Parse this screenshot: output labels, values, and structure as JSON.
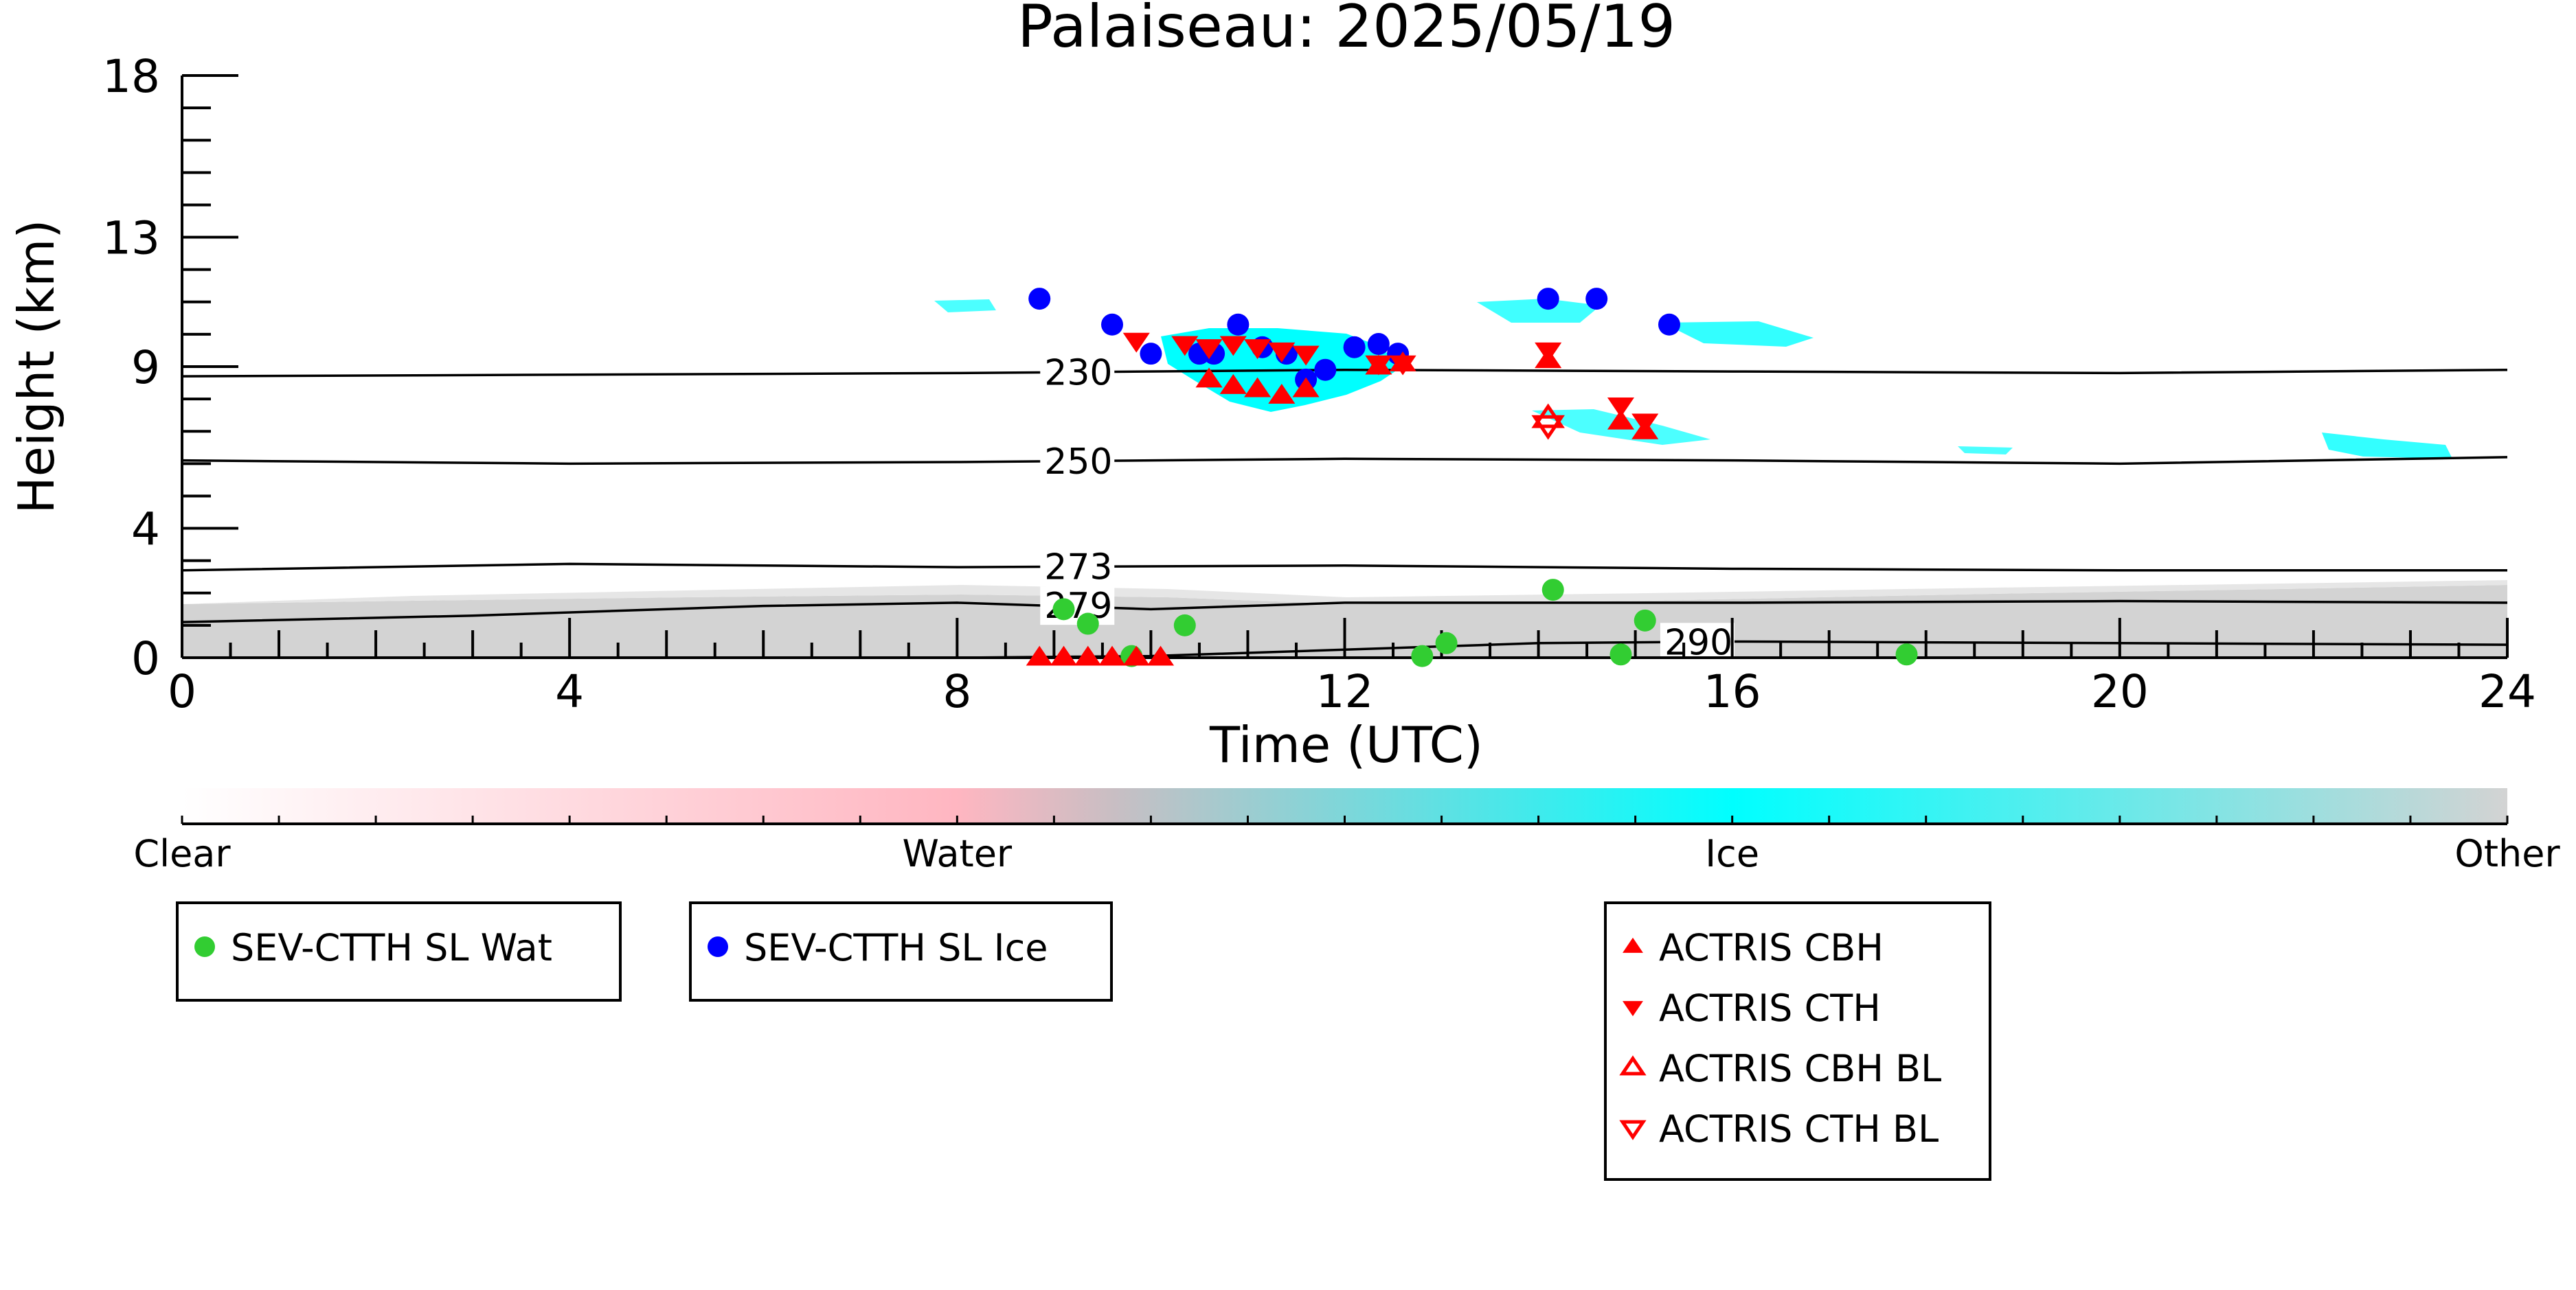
{
  "chart_data": {
    "type": "scatter",
    "title": "Palaiseau: 2025/05/19",
    "xlabel": "Time (UTC)",
    "ylabel": "Height (km)",
    "xlim": [
      0,
      24
    ],
    "ylim": [
      0,
      18
    ],
    "xticks": [
      "0",
      "4",
      "8",
      "12",
      "16",
      "20",
      "24"
    ],
    "yticks": [
      "0",
      "4",
      "9",
      "13",
      "18"
    ],
    "grid": false,
    "colorbar": {
      "labels": [
        "Clear",
        "Water",
        "Ice",
        "Other"
      ],
      "colors": [
        "#ffffff",
        "#ffb6c1",
        "#00ffff",
        "#d3d3d3"
      ]
    },
    "isotherms": [
      {
        "label": "230",
        "x": [
          0,
          4,
          8,
          12,
          16,
          20,
          24
        ],
        "y": [
          8.7,
          8.75,
          8.8,
          8.9,
          8.85,
          8.8,
          8.9
        ]
      },
      {
        "label": "250",
        "x": [
          0,
          4,
          8,
          12,
          16,
          20,
          24
        ],
        "y": [
          6.1,
          6.0,
          6.05,
          6.15,
          6.1,
          6.0,
          6.2
        ]
      },
      {
        "label": "273",
        "x": [
          0,
          4,
          8,
          12,
          16,
          20,
          24
        ],
        "y": [
          2.7,
          2.9,
          2.8,
          2.85,
          2.75,
          2.7,
          2.7
        ]
      },
      {
        "label": "279",
        "x": [
          0,
          3,
          6,
          8,
          10,
          12,
          16,
          20,
          24
        ],
        "y": [
          1.1,
          1.3,
          1.6,
          1.7,
          1.5,
          1.7,
          1.7,
          1.75,
          1.7
        ]
      },
      {
        "label": "290",
        "x": [
          8,
          10,
          12,
          14,
          16,
          20,
          24
        ],
        "y": [
          0.0,
          0.05,
          0.25,
          0.45,
          0.5,
          0.45,
          0.4
        ]
      }
    ],
    "series": [
      {
        "name": "SEV-CTTH SL Wat",
        "color": "#32cd32",
        "marker": "circle",
        "x": [
          9.1,
          9.35,
          9.8,
          10.35,
          12.8,
          13.05,
          14.15,
          14.85,
          15.1,
          17.8
        ],
        "y": [
          1.5,
          1.05,
          0.05,
          1.0,
          0.05,
          0.45,
          2.1,
          0.1,
          1.15,
          0.1
        ]
      },
      {
        "name": "SEV-CTTH SL Ice",
        "color": "#0000ff",
        "marker": "circle",
        "x": [
          8.85,
          9.6,
          10.0,
          10.5,
          10.65,
          10.9,
          11.15,
          11.4,
          11.6,
          11.8,
          12.1,
          12.35,
          12.55,
          14.1,
          14.6,
          15.35
        ],
        "y": [
          11.1,
          10.3,
          9.4,
          9.4,
          9.4,
          10.3,
          9.6,
          9.4,
          8.6,
          8.9,
          9.6,
          9.7,
          9.4,
          11.1,
          11.1,
          10.3
        ]
      },
      {
        "name": "ACTRIS CBH",
        "color": "#ff0000",
        "marker": "triangle-up",
        "x": [
          8.85,
          9.1,
          9.35,
          9.6,
          9.85,
          10.1,
          10.6,
          10.85,
          11.1,
          11.35,
          11.6,
          12.35,
          12.6,
          14.1,
          14.85,
          15.1
        ],
        "y": [
          0.0,
          0.0,
          0.0,
          0.0,
          0.0,
          0.0,
          8.6,
          8.4,
          8.3,
          8.1,
          8.3,
          9.0,
          9.1,
          9.2,
          7.3,
          7.0
        ]
      },
      {
        "name": "ACTRIS CTH",
        "color": "#ff0000",
        "marker": "triangle-down",
        "x": [
          9.85,
          10.35,
          10.6,
          10.85,
          11.1,
          11.35,
          11.6,
          12.35,
          12.6,
          14.1,
          14.85,
          15.1
        ],
        "y": [
          9.8,
          9.7,
          9.6,
          9.7,
          9.6,
          9.5,
          9.4,
          9.1,
          9.1,
          9.5,
          7.8,
          7.3
        ]
      },
      {
        "name": "ACTRIS CBH BL",
        "color": "#ff0000",
        "marker": "triangle-up-open",
        "x": [
          14.1
        ],
        "y": [
          7.4
        ]
      },
      {
        "name": "ACTRIS CTH BL",
        "color": "#ff0000",
        "marker": "triangle-down-open",
        "x": [
          14.1
        ],
        "y": [
          7.2
        ]
      }
    ]
  },
  "legend_groups": [
    [
      "SEV-CTTH SL Wat"
    ],
    [
      "SEV-CTTH SL Ice"
    ],
    [
      "ACTRIS CBH",
      "ACTRIS CTH",
      "ACTRIS CBH BL",
      "ACTRIS CTH BL"
    ]
  ]
}
